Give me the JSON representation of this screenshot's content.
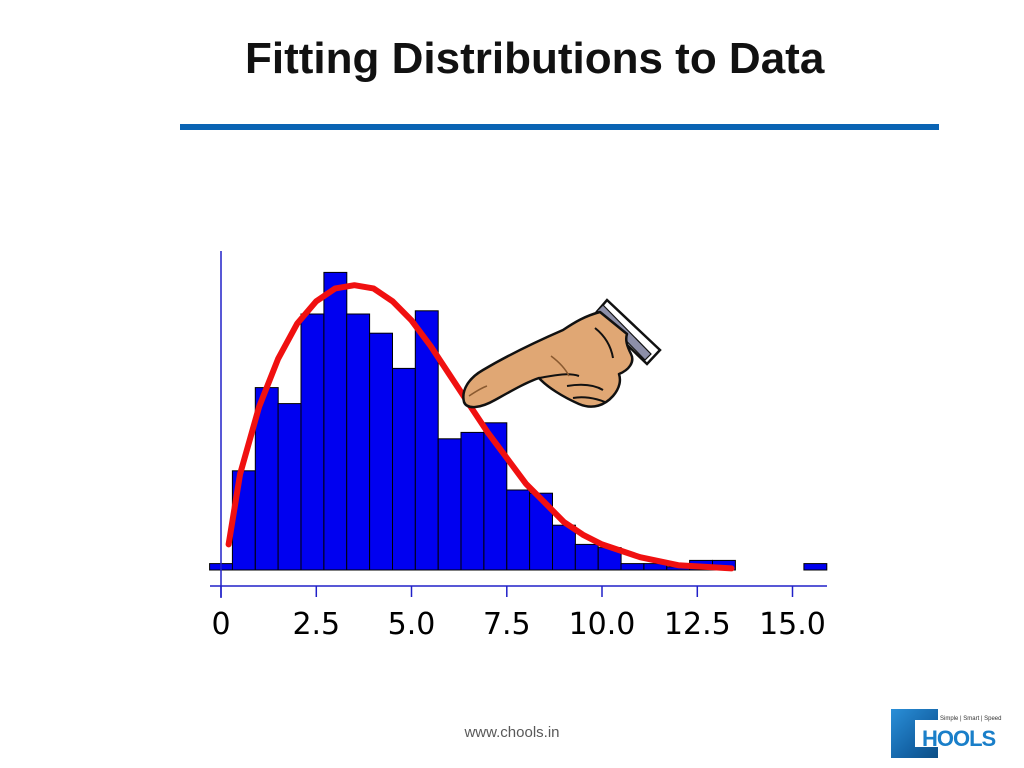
{
  "slide": {
    "title": "Fitting Distributions to Data",
    "footer_url": "www.chools.in"
  },
  "logo": {
    "wordmark": "HOOLS",
    "tagline": "Simple | Smart | Speed"
  },
  "colors": {
    "title_rule": "#0a64b4",
    "bars": "#0000f0",
    "bar_outline": "#000000",
    "fit_curve": "#f01010",
    "axes": "#2020c8",
    "tick_labels": "#000000"
  },
  "icons": {
    "pointer": "pointing-hand-icon"
  },
  "chart_data": {
    "type": "bar",
    "title": "",
    "xlabel": "",
    "ylabel": "",
    "x_ticks": [
      0,
      2.5,
      5.0,
      7.5,
      10.0,
      12.5,
      15.0
    ],
    "x_tick_labels": [
      "0",
      "2.5",
      "5.0",
      "7.5",
      "10.0",
      "12.5",
      "15.0"
    ],
    "bin_width": 0.6,
    "bin_starts": [
      -0.3,
      0.3,
      0.9,
      1.5,
      2.1,
      2.7,
      3.3,
      3.9,
      4.5,
      5.1,
      5.7,
      6.3,
      6.9,
      7.5,
      8.1,
      8.7,
      9.3,
      9.9,
      10.5,
      11.1,
      11.7,
      12.3,
      12.9,
      13.5,
      14.1,
      14.7,
      15.3
    ],
    "values": [
      2,
      31,
      57,
      52,
      80,
      93,
      80,
      74,
      63,
      81,
      41,
      43,
      46,
      25,
      24,
      14,
      8,
      7,
      2,
      2,
      1,
      3,
      3,
      0,
      0,
      0,
      2
    ],
    "x_range": [
      -0.3,
      15.9
    ],
    "y_range": [
      0,
      100
    ],
    "series": [
      {
        "type": "bar",
        "values_ref": "values"
      },
      {
        "type": "fitted_curve",
        "x": [
          0.2,
          0.5,
          1.0,
          1.5,
          2.0,
          2.5,
          3.0,
          3.5,
          4.0,
          4.5,
          5.0,
          5.5,
          6.0,
          6.5,
          7.0,
          7.5,
          8.0,
          8.5,
          9.0,
          9.5,
          10.0,
          11.0,
          12.0,
          13.4
        ],
        "y": [
          8,
          30,
          51,
          66,
          77,
          84,
          88,
          89,
          88,
          84,
          78,
          70,
          61,
          52,
          43,
          35,
          27,
          21,
          15,
          11,
          8,
          4,
          1.5,
          0.5
        ]
      }
    ],
    "grid": false,
    "legend": "none"
  }
}
